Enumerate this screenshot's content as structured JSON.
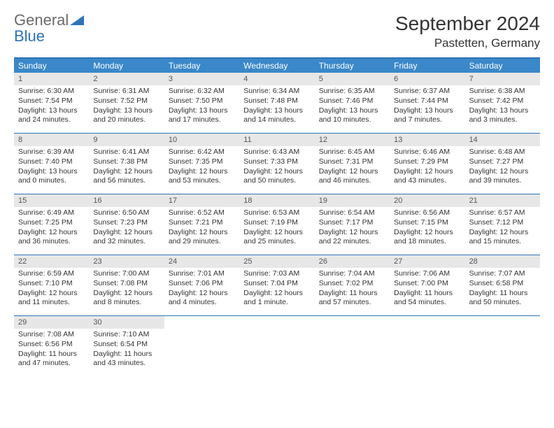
{
  "logo": {
    "word1": "General",
    "word2": "Blue"
  },
  "title": "September 2024",
  "location": "Pastetten, Germany",
  "colors": {
    "header_bg": "#3a88c9",
    "border": "#2d73b8",
    "daynum_bg": "#e7e7e7",
    "text": "#333333",
    "logo_gray": "#6b6b6b",
    "logo_blue": "#2d73b8"
  },
  "day_names": [
    "Sunday",
    "Monday",
    "Tuesday",
    "Wednesday",
    "Thursday",
    "Friday",
    "Saturday"
  ],
  "weeks": [
    [
      {
        "n": "1",
        "sr": "Sunrise: 6:30 AM",
        "ss": "Sunset: 7:54 PM",
        "dl": "Daylight: 13 hours and 24 minutes."
      },
      {
        "n": "2",
        "sr": "Sunrise: 6:31 AM",
        "ss": "Sunset: 7:52 PM",
        "dl": "Daylight: 13 hours and 20 minutes."
      },
      {
        "n": "3",
        "sr": "Sunrise: 6:32 AM",
        "ss": "Sunset: 7:50 PM",
        "dl": "Daylight: 13 hours and 17 minutes."
      },
      {
        "n": "4",
        "sr": "Sunrise: 6:34 AM",
        "ss": "Sunset: 7:48 PM",
        "dl": "Daylight: 13 hours and 14 minutes."
      },
      {
        "n": "5",
        "sr": "Sunrise: 6:35 AM",
        "ss": "Sunset: 7:46 PM",
        "dl": "Daylight: 13 hours and 10 minutes."
      },
      {
        "n": "6",
        "sr": "Sunrise: 6:37 AM",
        "ss": "Sunset: 7:44 PM",
        "dl": "Daylight: 13 hours and 7 minutes."
      },
      {
        "n": "7",
        "sr": "Sunrise: 6:38 AM",
        "ss": "Sunset: 7:42 PM",
        "dl": "Daylight: 13 hours and 3 minutes."
      }
    ],
    [
      {
        "n": "8",
        "sr": "Sunrise: 6:39 AM",
        "ss": "Sunset: 7:40 PM",
        "dl": "Daylight: 13 hours and 0 minutes."
      },
      {
        "n": "9",
        "sr": "Sunrise: 6:41 AM",
        "ss": "Sunset: 7:38 PM",
        "dl": "Daylight: 12 hours and 56 minutes."
      },
      {
        "n": "10",
        "sr": "Sunrise: 6:42 AM",
        "ss": "Sunset: 7:35 PM",
        "dl": "Daylight: 12 hours and 53 minutes."
      },
      {
        "n": "11",
        "sr": "Sunrise: 6:43 AM",
        "ss": "Sunset: 7:33 PM",
        "dl": "Daylight: 12 hours and 50 minutes."
      },
      {
        "n": "12",
        "sr": "Sunrise: 6:45 AM",
        "ss": "Sunset: 7:31 PM",
        "dl": "Daylight: 12 hours and 46 minutes."
      },
      {
        "n": "13",
        "sr": "Sunrise: 6:46 AM",
        "ss": "Sunset: 7:29 PM",
        "dl": "Daylight: 12 hours and 43 minutes."
      },
      {
        "n": "14",
        "sr": "Sunrise: 6:48 AM",
        "ss": "Sunset: 7:27 PM",
        "dl": "Daylight: 12 hours and 39 minutes."
      }
    ],
    [
      {
        "n": "15",
        "sr": "Sunrise: 6:49 AM",
        "ss": "Sunset: 7:25 PM",
        "dl": "Daylight: 12 hours and 36 minutes."
      },
      {
        "n": "16",
        "sr": "Sunrise: 6:50 AM",
        "ss": "Sunset: 7:23 PM",
        "dl": "Daylight: 12 hours and 32 minutes."
      },
      {
        "n": "17",
        "sr": "Sunrise: 6:52 AM",
        "ss": "Sunset: 7:21 PM",
        "dl": "Daylight: 12 hours and 29 minutes."
      },
      {
        "n": "18",
        "sr": "Sunrise: 6:53 AM",
        "ss": "Sunset: 7:19 PM",
        "dl": "Daylight: 12 hours and 25 minutes."
      },
      {
        "n": "19",
        "sr": "Sunrise: 6:54 AM",
        "ss": "Sunset: 7:17 PM",
        "dl": "Daylight: 12 hours and 22 minutes."
      },
      {
        "n": "20",
        "sr": "Sunrise: 6:56 AM",
        "ss": "Sunset: 7:15 PM",
        "dl": "Daylight: 12 hours and 18 minutes."
      },
      {
        "n": "21",
        "sr": "Sunrise: 6:57 AM",
        "ss": "Sunset: 7:12 PM",
        "dl": "Daylight: 12 hours and 15 minutes."
      }
    ],
    [
      {
        "n": "22",
        "sr": "Sunrise: 6:59 AM",
        "ss": "Sunset: 7:10 PM",
        "dl": "Daylight: 12 hours and 11 minutes."
      },
      {
        "n": "23",
        "sr": "Sunrise: 7:00 AM",
        "ss": "Sunset: 7:08 PM",
        "dl": "Daylight: 12 hours and 8 minutes."
      },
      {
        "n": "24",
        "sr": "Sunrise: 7:01 AM",
        "ss": "Sunset: 7:06 PM",
        "dl": "Daylight: 12 hours and 4 minutes."
      },
      {
        "n": "25",
        "sr": "Sunrise: 7:03 AM",
        "ss": "Sunset: 7:04 PM",
        "dl": "Daylight: 12 hours and 1 minute."
      },
      {
        "n": "26",
        "sr": "Sunrise: 7:04 AM",
        "ss": "Sunset: 7:02 PM",
        "dl": "Daylight: 11 hours and 57 minutes."
      },
      {
        "n": "27",
        "sr": "Sunrise: 7:06 AM",
        "ss": "Sunset: 7:00 PM",
        "dl": "Daylight: 11 hours and 54 minutes."
      },
      {
        "n": "28",
        "sr": "Sunrise: 7:07 AM",
        "ss": "Sunset: 6:58 PM",
        "dl": "Daylight: 11 hours and 50 minutes."
      }
    ],
    [
      {
        "n": "29",
        "sr": "Sunrise: 7:08 AM",
        "ss": "Sunset: 6:56 PM",
        "dl": "Daylight: 11 hours and 47 minutes."
      },
      {
        "n": "30",
        "sr": "Sunrise: 7:10 AM",
        "ss": "Sunset: 6:54 PM",
        "dl": "Daylight: 11 hours and 43 minutes."
      },
      null,
      null,
      null,
      null,
      null
    ]
  ]
}
